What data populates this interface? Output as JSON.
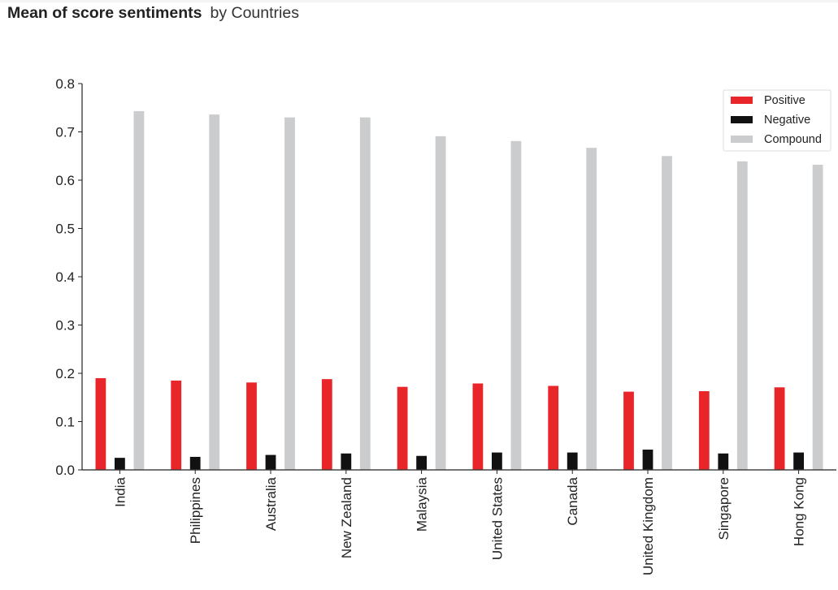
{
  "header": {
    "title_bold": "Mean of score sentiments",
    "title_rest": "by Countries"
  },
  "chart_data": {
    "type": "bar",
    "title": "Mean of score sentiments by Countries",
    "xlabel": "",
    "ylabel": "",
    "ylim": [
      0,
      0.8
    ],
    "yticks": [
      "0.0",
      "0.1",
      "0.2",
      "0.3",
      "0.4",
      "0.5",
      "0.6",
      "0.7",
      "0.8"
    ],
    "categories": [
      "India",
      "Philippines",
      "Australia",
      "New Zealand",
      "Malaysia",
      "United States",
      "Canada",
      "United Kingdom",
      "Singapore",
      "Hong Kong"
    ],
    "series": [
      {
        "name": "Positive",
        "color": "#e8262a",
        "values": [
          0.191,
          0.186,
          0.182,
          0.189,
          0.173,
          0.18,
          0.175,
          0.163,
          0.164,
          0.172
        ]
      },
      {
        "name": "Negative",
        "color": "#111111",
        "values": [
          0.026,
          0.028,
          0.032,
          0.035,
          0.03,
          0.037,
          0.037,
          0.043,
          0.035,
          0.037
        ]
      },
      {
        "name": "Compound",
        "color": "#cbcccd",
        "values": [
          0.744,
          0.737,
          0.731,
          0.731,
          0.692,
          0.682,
          0.668,
          0.651,
          0.64,
          0.633
        ]
      }
    ],
    "legend_position": "top-right",
    "grid": false
  }
}
